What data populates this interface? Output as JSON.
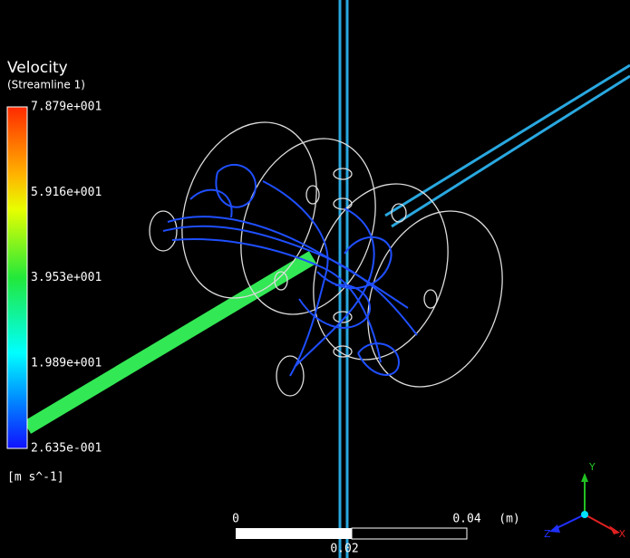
{
  "legend": {
    "title": "Velocity",
    "subtitle": "(Streamline 1)",
    "labels": [
      "7.879e+001",
      "5.916e+001",
      "3.953e+001",
      "1.989e+001",
      "2.635e-001"
    ],
    "units": "[m s^-1]"
  },
  "scale_bar": {
    "start": "0",
    "end": "0.04",
    "unit": "(m)",
    "middle": "0.02"
  },
  "triad": {
    "x": "X",
    "y": "Y",
    "z": "Z"
  }
}
